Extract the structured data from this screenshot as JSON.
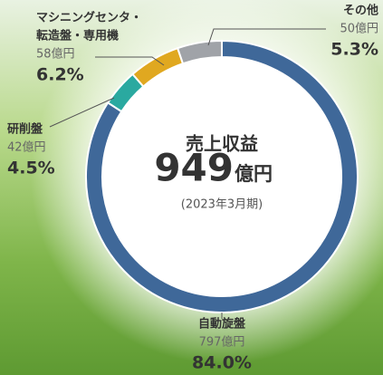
{
  "chart_data": {
    "type": "donut",
    "center_label": "売上収益",
    "total": 949,
    "total_unit": "億円",
    "period": "(2023年3月期)",
    "categories": [
      "自動旋盤",
      "研削盤",
      [
        "マシニングセンタ・",
        "転造盤・専用機"
      ],
      "その他"
    ],
    "values": [
      797,
      42,
      58,
      50
    ],
    "value_labels": [
      "797億円",
      "42億円",
      "58億円",
      "50億円"
    ],
    "percent_labels": [
      "84.0%",
      "4.5%",
      "6.2%",
      "5.3%"
    ],
    "colors": [
      "#3f6899",
      "#2aa9a0",
      "#e0a820",
      "#a0a3a8"
    ]
  }
}
